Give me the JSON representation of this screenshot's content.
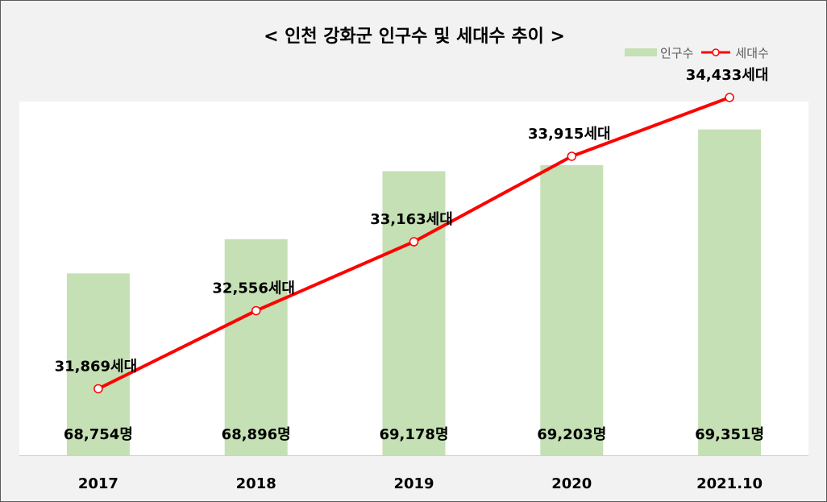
{
  "chart_data": {
    "type": "bar+line",
    "title": "< 인천 강화군 인구수 및 세대수 추이 >",
    "categories": [
      "2017",
      "2018",
      "2019",
      "2020",
      "2021.10"
    ],
    "series": [
      {
        "name": "인구수",
        "type": "bar",
        "values": [
          68754,
          68896,
          69178,
          69203,
          69351
        ],
        "labels": [
          "68,754명",
          "68,896명",
          "69,178명",
          "69,203명",
          "69,351명"
        ],
        "color": "#c5e0b4"
      },
      {
        "name": "세대수",
        "type": "line",
        "values": [
          31869,
          32556,
          33163,
          33915,
          34433
        ],
        "labels": [
          "31,869세대",
          "32,556세대",
          "33,163세대",
          "33,915세대",
          "34,433세대"
        ],
        "color": "#ff0000"
      }
    ],
    "bar_axis_range": [
      68000,
      69400
    ],
    "line_axis_range": [
      30000,
      35000
    ],
    "legend_position": "top-right",
    "grid": false
  }
}
